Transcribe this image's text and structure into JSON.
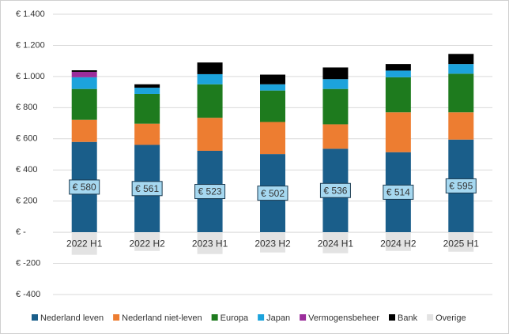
{
  "chart_data": {
    "type": "stacked_bar",
    "categories": [
      "2022 H1",
      "2022 H2",
      "2023 H1",
      "2023 H2",
      "2024 H1",
      "2024 H2",
      "2025 H1"
    ],
    "series": [
      {
        "name": "Nederland leven",
        "color": "#1a5e8a",
        "values": [
          580,
          561,
          523,
          502,
          536,
          514,
          595
        ],
        "value_labels": [
          "€ 580",
          "€ 561",
          "€ 523",
          "€ 502",
          "€ 536",
          "€ 514",
          "€ 595"
        ]
      },
      {
        "name": "Nederland niet-leven",
        "color": "#ed7d31",
        "values": [
          142,
          136,
          212,
          206,
          157,
          256,
          175
        ]
      },
      {
        "name": "Europa",
        "color": "#1e7b1e",
        "values": [
          198,
          191,
          215,
          202,
          227,
          225,
          248
        ]
      },
      {
        "name": "Japan",
        "color": "#1ca3dc",
        "values": [
          75,
          40,
          65,
          40,
          63,
          43,
          62
        ]
      },
      {
        "name": "Vermogensbeheer",
        "color": "#9b2d9b",
        "values": [
          35,
          0,
          0,
          0,
          0,
          0,
          0
        ]
      },
      {
        "name": "Bank",
        "color": "#000000",
        "values": [
          10,
          22,
          75,
          62,
          75,
          42,
          65
        ]
      },
      {
        "name": "Overige",
        "color": "#e3e3e3",
        "values": [
          -145,
          -120,
          -140,
          -130,
          -135,
          -120,
          -125
        ]
      }
    ],
    "ylim": [
      -400,
      1400
    ],
    "yticks": [
      {
        "value": -400,
        "label": "€ -400"
      },
      {
        "value": -200,
        "label": "€ -200"
      },
      {
        "value": 0,
        "label": "€ -"
      },
      {
        "value": 200,
        "label": "€ 200"
      },
      {
        "value": 400,
        "label": "€ 400"
      },
      {
        "value": 600,
        "label": "€ 600"
      },
      {
        "value": 800,
        "label": "€ 800"
      },
      {
        "value": 1000,
        "label": "€ 1.000"
      },
      {
        "value": 1200,
        "label": "€ 1.200"
      },
      {
        "value": 1400,
        "label": "€ 1.400"
      }
    ],
    "grid": true,
    "legend": "bottom"
  }
}
